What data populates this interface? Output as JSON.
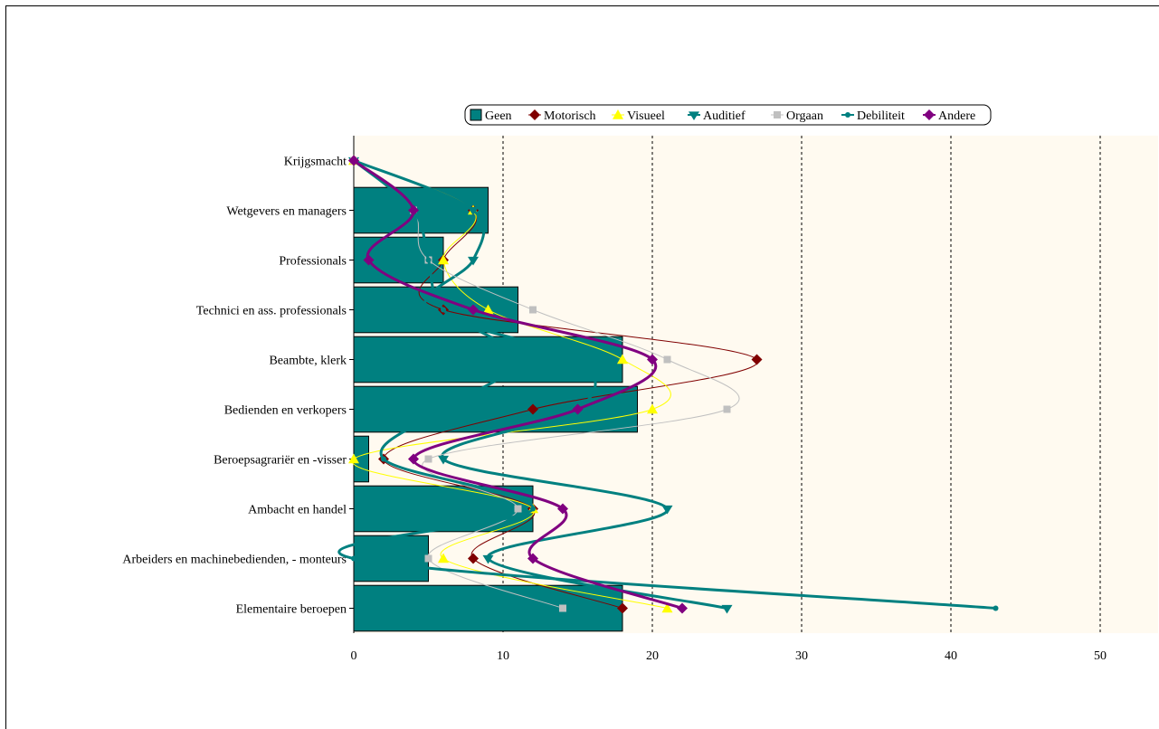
{
  "chart_data": {
    "type": "bar",
    "orientation": "horizontal",
    "categories": [
      "Krijgsmacht",
      "Wetgevers en managers",
      "Professionals",
      "Technici en ass. professionals",
      "Beambte, klerk",
      "Bedienden en verkopers",
      "Beroepsagrariër en -visser",
      "Ambacht en handel",
      "Arbeiders en machinebedienden, - monteurs",
      "Elementaire beroepen"
    ],
    "xlim": [
      0,
      50
    ],
    "x_ticks": [
      "0",
      "10",
      "20",
      "30",
      "40",
      "50"
    ],
    "grid": "vertical dashed",
    "legend_position": "top",
    "series": [
      {
        "name": "Geen",
        "kind": "bar",
        "color": "#008080",
        "values": [
          0,
          9,
          6,
          11,
          18,
          19,
          1,
          12,
          5,
          18
        ]
      },
      {
        "name": "Motorisch",
        "kind": "line",
        "marker": "diamond",
        "color": "#800000",
        "line_width": 1,
        "values": [
          0,
          8,
          6,
          6,
          27,
          12,
          2,
          12,
          8,
          18
        ]
      },
      {
        "name": "Visueel",
        "kind": "line",
        "marker": "triangle",
        "color": "#FFFF00",
        "line_width": 1,
        "values": [
          0,
          8,
          6,
          9,
          18,
          20,
          0,
          12,
          6,
          21
        ]
      },
      {
        "name": "Auditief",
        "kind": "line",
        "marker": "triangle-down",
        "color": "#008080",
        "line_width": 3,
        "values": [
          0,
          8,
          8,
          5,
          15,
          15,
          6,
          21,
          9,
          25
        ]
      },
      {
        "name": "Orgaan",
        "kind": "line",
        "marker": "square",
        "color": "#C0C0C0",
        "line_width": 1,
        "values": [
          0,
          4,
          5,
          12,
          21,
          25,
          5,
          11,
          5,
          14
        ]
      },
      {
        "name": "Debiliteit",
        "kind": "line",
        "marker": "circle",
        "color": "#008080",
        "line_width": 3,
        "values": [
          0,
          4,
          5,
          6,
          11,
          6,
          2,
          12,
          0,
          43
        ]
      },
      {
        "name": "Andere",
        "kind": "line",
        "marker": "diamond",
        "color": "#800080",
        "line_width": 3,
        "values": [
          0,
          4,
          1,
          8,
          20,
          15,
          4,
          14,
          12,
          22
        ]
      }
    ]
  }
}
